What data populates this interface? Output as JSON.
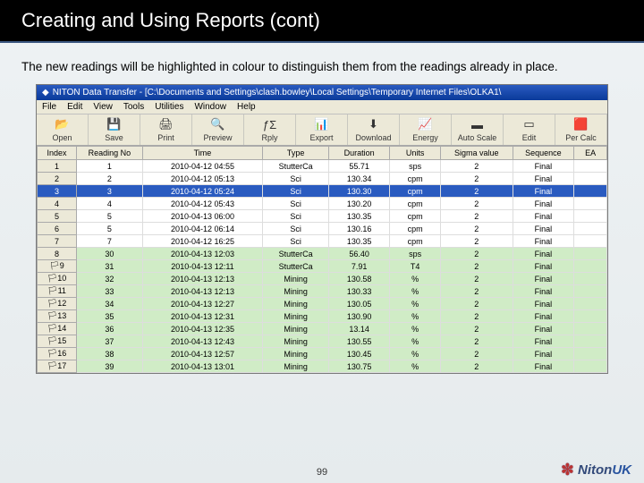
{
  "slide_title": "Creating and Using Reports (cont)",
  "description": "The new readings will be highlighted in colour to distinguish them from the readings already in place.",
  "page_number": "99",
  "logo_text": "NitonUK",
  "window": {
    "title": "NITON Data Transfer - [C:\\Documents and Settings\\clash.bowley\\Local Settings\\Temporary Internet Files\\OLKA1\\",
    "menu": [
      "File",
      "Edit",
      "View",
      "Tools",
      "Utilities",
      "Window",
      "Help"
    ],
    "toolbar": [
      {
        "icon": "📂",
        "label": "Open"
      },
      {
        "icon": "💾",
        "label": "Save"
      },
      {
        "icon": "🖨",
        "label": "Print"
      },
      {
        "icon": "🔍",
        "label": "Preview"
      },
      {
        "icon": "ƒΣ",
        "label": "Rply"
      },
      {
        "icon": "📊",
        "label": "Export"
      },
      {
        "icon": "⬇",
        "label": "Download"
      },
      {
        "icon": "📈",
        "label": "Energy"
      },
      {
        "icon": "▬",
        "label": "Auto Scale"
      },
      {
        "icon": "▭",
        "label": "Edit"
      },
      {
        "icon": "🟥",
        "label": "Per Calc"
      }
    ]
  },
  "columns": [
    "Index",
    "Reading No",
    "Time",
    "Type",
    "Duration",
    "Units",
    "Sigma value",
    "Sequence",
    "EA"
  ],
  "col_widths": [
    "36px",
    "60px",
    "110px",
    "60px",
    "56px",
    "46px",
    "66px",
    "56px",
    "30px"
  ],
  "rows": [
    {
      "idx": "1",
      "no": "1",
      "time": "2010-04-12 04:55",
      "type": "StutterCa",
      "dur": "55.71",
      "units": "sps",
      "sig": "2",
      "seq": "Final",
      "sel": false,
      "hl": false,
      "flag": false
    },
    {
      "idx": "2",
      "no": "2",
      "time": "2010-04-12 05:13",
      "type": "Sci",
      "dur": "130.34",
      "units": "cpm",
      "sig": "2",
      "seq": "Final",
      "sel": false,
      "hl": false,
      "flag": false
    },
    {
      "idx": "3",
      "no": "3",
      "time": "2010-04-12 05:24",
      "type": "Sci",
      "dur": "130.30",
      "units": "cpm",
      "sig": "2",
      "seq": "Final",
      "sel": true,
      "hl": false,
      "flag": false
    },
    {
      "idx": "4",
      "no": "4",
      "time": "2010-04-12 05:43",
      "type": "Sci",
      "dur": "130.20",
      "units": "cpm",
      "sig": "2",
      "seq": "Final",
      "sel": false,
      "hl": false,
      "flag": false
    },
    {
      "idx": "5",
      "no": "5",
      "time": "2010-04-13 06:00",
      "type": "Sci",
      "dur": "130.35",
      "units": "cpm",
      "sig": "2",
      "seq": "Final",
      "sel": false,
      "hl": false,
      "flag": false
    },
    {
      "idx": "6",
      "no": "5",
      "time": "2010-04-12 06:14",
      "type": "Sci",
      "dur": "130.16",
      "units": "cpm",
      "sig": "2",
      "seq": "Final",
      "sel": false,
      "hl": false,
      "flag": false
    },
    {
      "idx": "7",
      "no": "7",
      "time": "2010-04-12 16:25",
      "type": "Sci",
      "dur": "130.35",
      "units": "cpm",
      "sig": "2",
      "seq": "Final",
      "sel": false,
      "hl": false,
      "flag": false
    },
    {
      "idx": "8",
      "no": "30",
      "time": "2010-04-13 12:03",
      "type": "StutterCa",
      "dur": "56.40",
      "units": "sps",
      "sig": "2",
      "seq": "Final",
      "sel": false,
      "hl": true,
      "flag": false
    },
    {
      "idx": "9",
      "no": "31",
      "time": "2010-04-13 12:11",
      "type": "StutterCa",
      "dur": "7.91",
      "units": "T4",
      "sig": "2",
      "seq": "Final",
      "sel": false,
      "hl": true,
      "flag": true
    },
    {
      "idx": "10",
      "no": "32",
      "time": "2010-04-13 12:13",
      "type": "Mining",
      "dur": "130.58",
      "units": "%",
      "sig": "2",
      "seq": "Final",
      "sel": false,
      "hl": true,
      "flag": true
    },
    {
      "idx": "11",
      "no": "33",
      "time": "2010-04-13 12:13",
      "type": "Mining",
      "dur": "130.33",
      "units": "%",
      "sig": "2",
      "seq": "Final",
      "sel": false,
      "hl": true,
      "flag": true
    },
    {
      "idx": "12",
      "no": "34",
      "time": "2010-04-13 12:27",
      "type": "Mining",
      "dur": "130.05",
      "units": "%",
      "sig": "2",
      "seq": "Final",
      "sel": false,
      "hl": true,
      "flag": true
    },
    {
      "idx": "13",
      "no": "35",
      "time": "2010-04-13 12:31",
      "type": "Mining",
      "dur": "130.90",
      "units": "%",
      "sig": "2",
      "seq": "Final",
      "sel": false,
      "hl": true,
      "flag": true
    },
    {
      "idx": "14",
      "no": "36",
      "time": "2010-04-13 12:35",
      "type": "Mining",
      "dur": "13.14",
      "units": "%",
      "sig": "2",
      "seq": "Final",
      "sel": false,
      "hl": true,
      "flag": true
    },
    {
      "idx": "15",
      "no": "37",
      "time": "2010-04-13 12:43",
      "type": "Mining",
      "dur": "130.55",
      "units": "%",
      "sig": "2",
      "seq": "Final",
      "sel": false,
      "hl": true,
      "flag": true
    },
    {
      "idx": "16",
      "no": "38",
      "time": "2010-04-13 12:57",
      "type": "Mining",
      "dur": "130.45",
      "units": "%",
      "sig": "2",
      "seq": "Final",
      "sel": false,
      "hl": true,
      "flag": true
    },
    {
      "idx": "17",
      "no": "39",
      "time": "2010-04-13 13:01",
      "type": "Mining",
      "dur": "130.75",
      "units": "%",
      "sig": "2",
      "seq": "Final",
      "sel": false,
      "hl": true,
      "flag": true
    }
  ]
}
